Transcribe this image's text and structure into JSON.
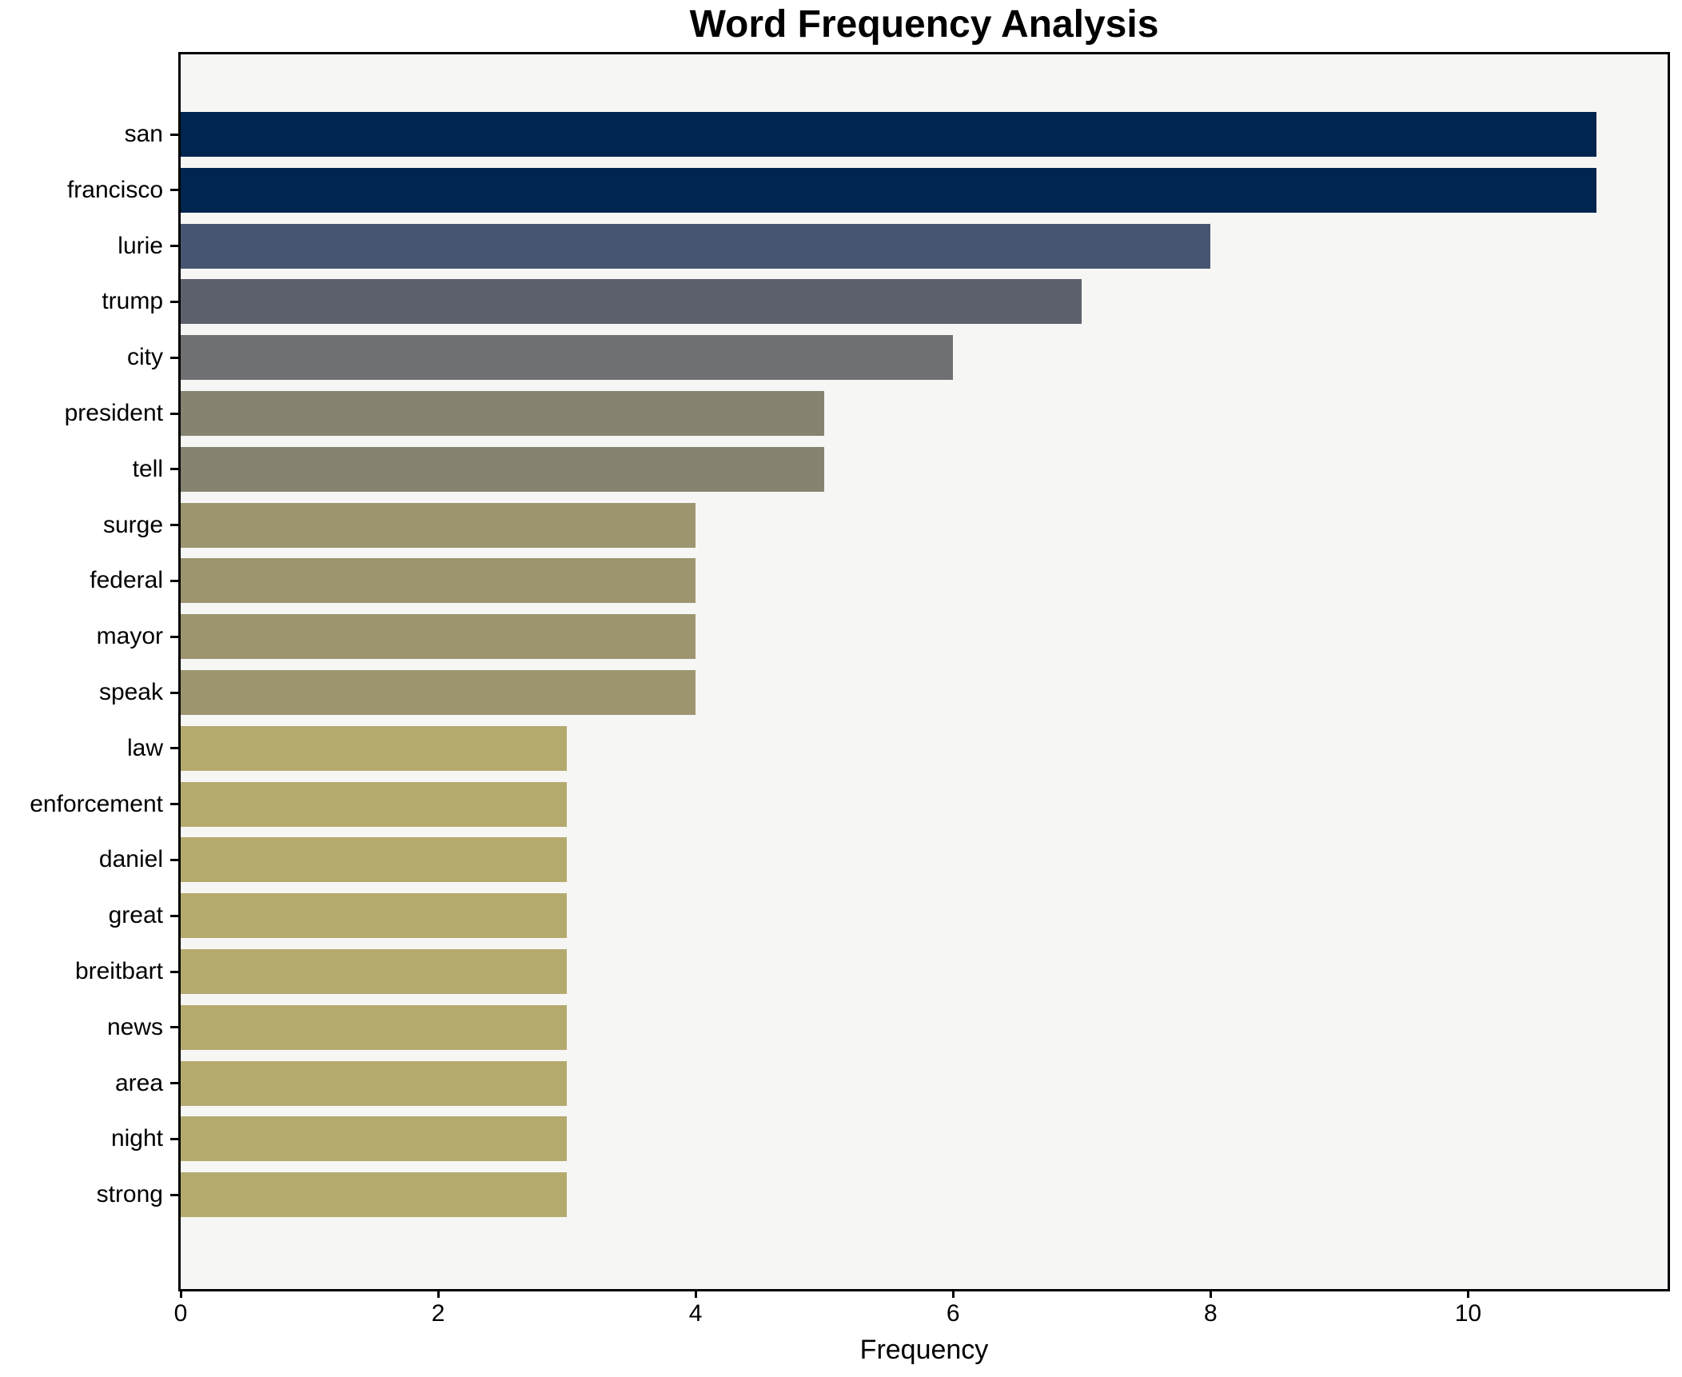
{
  "title": "Word Frequency Analysis",
  "chart_data": {
    "type": "bar",
    "orientation": "horizontal",
    "title": "Word Frequency Analysis",
    "xlabel": "Frequency",
    "ylabel": "",
    "categories": [
      "san",
      "francisco",
      "lurie",
      "trump",
      "city",
      "president",
      "tell",
      "surge",
      "federal",
      "mayor",
      "speak",
      "law",
      "enforcement",
      "daniel",
      "great",
      "breitbart",
      "news",
      "area",
      "night",
      "strong"
    ],
    "values": [
      11,
      11,
      8,
      7,
      6,
      5,
      5,
      4,
      4,
      4,
      4,
      3,
      3,
      3,
      3,
      3,
      3,
      3,
      3,
      3
    ],
    "bar_colors": [
      "#00254e",
      "#00254e",
      "#475571",
      "#5d606d",
      "#6f7072",
      "#868371",
      "#868371",
      "#9c9570",
      "#9c9570",
      "#9c9570",
      "#9c9570",
      "#b5aa6e",
      "#b5aa6e",
      "#b5aa6e",
      "#b5aa6e",
      "#b5aa6e",
      "#b5aa6e",
      "#b5aa6e",
      "#b5aa6e",
      "#b5aa6e"
    ],
    "x_ticks": [
      0,
      2,
      4,
      6,
      8,
      10
    ],
    "x_tick_labels": [
      "0",
      "2",
      "4",
      "6",
      "8",
      "10"
    ],
    "xlim": [
      0,
      11.55
    ],
    "grid": false,
    "legend": null
  },
  "colors": {
    "figure_bg": "#ffffff",
    "plot_bg": "#f6f6f4",
    "spine": "#000000",
    "text": "#000000"
  }
}
